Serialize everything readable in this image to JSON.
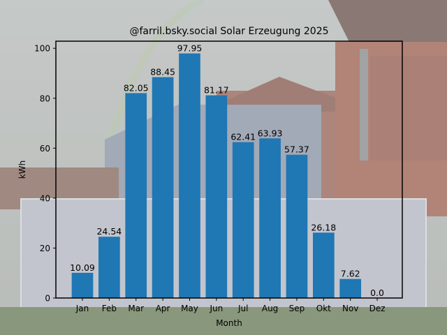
{
  "chart_data": {
    "type": "bar",
    "title": "@farril.bsky.social Solar Erzeugung 2025",
    "xlabel": "Month",
    "ylabel": "kWh",
    "categories": [
      "Jan",
      "Feb",
      "Mar",
      "Apr",
      "May",
      "Jun",
      "Jul",
      "Aug",
      "Sep",
      "Okt",
      "Nov",
      "Dez"
    ],
    "values": [
      10.09,
      24.54,
      82.05,
      88.45,
      97.95,
      81.17,
      62.41,
      63.93,
      57.37,
      26.18,
      7.62,
      0.0
    ],
    "value_labels": [
      "10.09",
      "24.54",
      "82.05",
      "88.45",
      "97.95",
      "81.17",
      "62.41",
      "63.93",
      "57.37",
      "26.18",
      "7.62",
      "0.0"
    ],
    "ylim": [
      0,
      102.85
    ],
    "yticks": [
      0,
      20,
      40,
      60,
      80,
      100
    ],
    "grid": false,
    "legend": "none",
    "bar_color": "#1f77b4",
    "background": "photo of a house with solar panels"
  }
}
